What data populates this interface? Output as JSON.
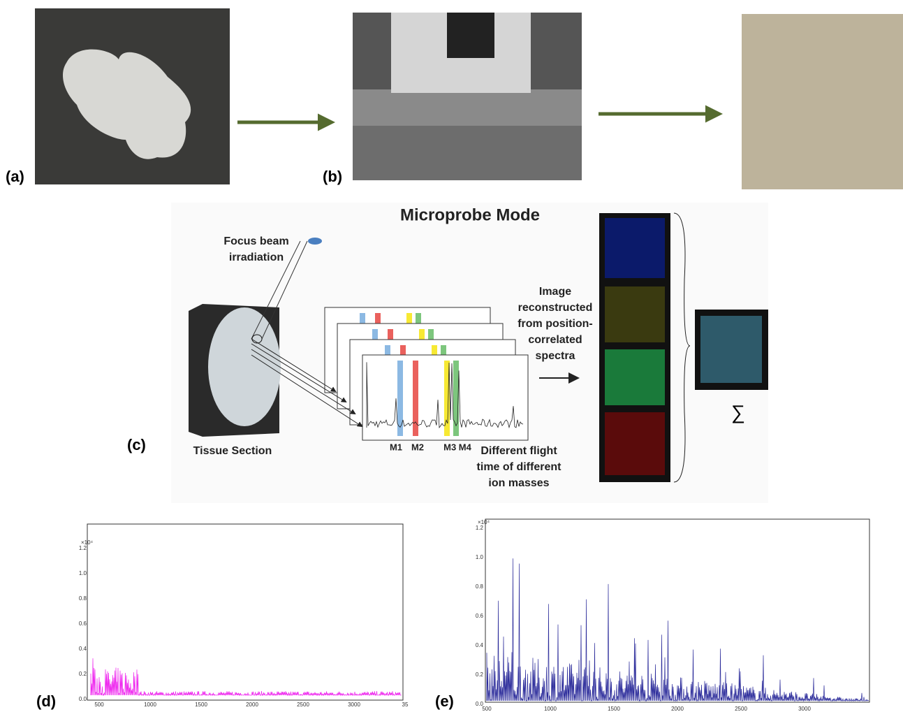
{
  "labels": [
    "(a)",
    "(b)",
    "(c)",
    "(d)",
    "(e)"
  ],
  "microprobe": {
    "title": "Microprobe Mode",
    "beam": [
      "Focus beam",
      "irradiation"
    ],
    "tissue": "Tissue Section",
    "reconstruct": [
      "Image",
      "reconstructed",
      "from position-",
      "correlated",
      "spectra"
    ],
    "masses": [
      "M1",
      "M2",
      "M3 M4"
    ],
    "flight": [
      "Different flight",
      "time of different",
      "ion masses"
    ],
    "sum": "∑"
  },
  "spectrum_d": {
    "y_unit": "×10⁴",
    "yticks": [
      "0.0",
      "0.2",
      "0.4",
      "0.6",
      "0.8",
      "1.0",
      "1.2"
    ],
    "xticks": [
      "500",
      "1000",
      "1500",
      "2000",
      "2500",
      "3000",
      "35"
    ]
  },
  "spectrum_e": {
    "y_unit": "×10⁴",
    "yticks": [
      "0.0",
      "0.2",
      "0.4",
      "0.6",
      "0.8",
      "1.0",
      "1.2"
    ],
    "xticks": [
      "500",
      "1000",
      "1500",
      "2000",
      "2500",
      "3000"
    ]
  }
}
